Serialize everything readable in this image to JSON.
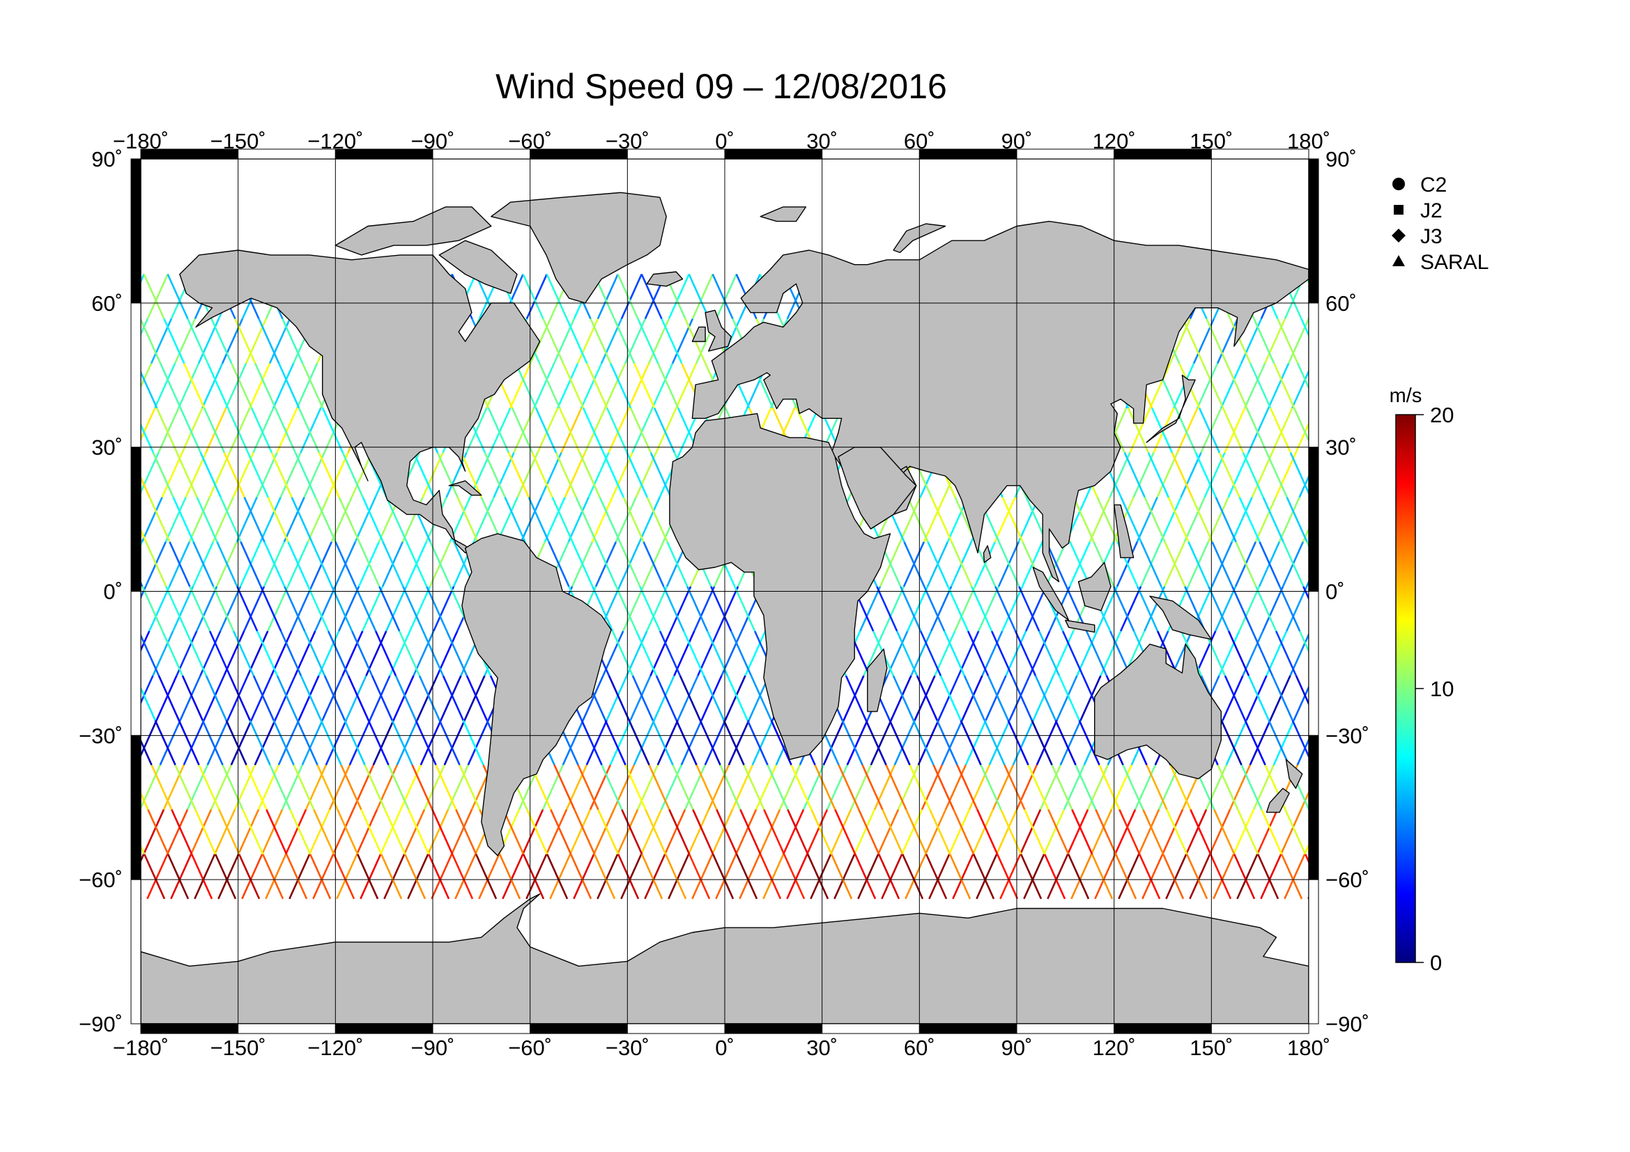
{
  "title": "Wind Speed 09 – 12/08/2016",
  "map": {
    "lon_range": [
      -180,
      180
    ],
    "lat_range": [
      -90,
      90
    ],
    "lon_ticks": [
      {
        "value": -180,
        "label": "−180˚"
      },
      {
        "value": -150,
        "label": "−150˚"
      },
      {
        "value": -120,
        "label": "−120˚"
      },
      {
        "value": -90,
        "label": "−90˚"
      },
      {
        "value": -60,
        "label": "−60˚"
      },
      {
        "value": -30,
        "label": "−30˚"
      },
      {
        "value": 0,
        "label": "0˚"
      },
      {
        "value": 30,
        "label": "30˚"
      },
      {
        "value": 60,
        "label": "60˚"
      },
      {
        "value": 90,
        "label": "90˚"
      },
      {
        "value": 120,
        "label": "120˚"
      },
      {
        "value": 150,
        "label": "150˚"
      },
      {
        "value": 180,
        "label": "180˚"
      }
    ],
    "lat_ticks": [
      {
        "value": 90,
        "label": "90˚"
      },
      {
        "value": 60,
        "label": "60˚"
      },
      {
        "value": 30,
        "label": "30˚"
      },
      {
        "value": 0,
        "label": "0˚"
      },
      {
        "value": -30,
        "label": "−30˚"
      },
      {
        "value": -60,
        "label": "−60˚"
      },
      {
        "value": -90,
        "label": "−90˚"
      }
    ],
    "land_color": "#bebebe",
    "ocean_color": "#ffffff",
    "track_coverage_lat": [
      -64,
      66
    ]
  },
  "legend": {
    "items": [
      {
        "symbol": "circle",
        "label": "C2"
      },
      {
        "symbol": "square",
        "label": "J2"
      },
      {
        "symbol": "diamond",
        "label": "J3"
      },
      {
        "symbol": "triangle",
        "label": "SARAL"
      }
    ]
  },
  "colorbar": {
    "unit": "m/s",
    "min": 0,
    "max": 20,
    "tick_labels": [
      {
        "value": 20,
        "label": "20"
      },
      {
        "value": 10,
        "label": "10"
      },
      {
        "value": 0,
        "label": "0"
      }
    ],
    "colormap": [
      "#00007f",
      "#0000ff",
      "#007fff",
      "#00ffff",
      "#7fff7f",
      "#ffff00",
      "#ff7f00",
      "#ff0000",
      "#7f0000"
    ]
  }
}
